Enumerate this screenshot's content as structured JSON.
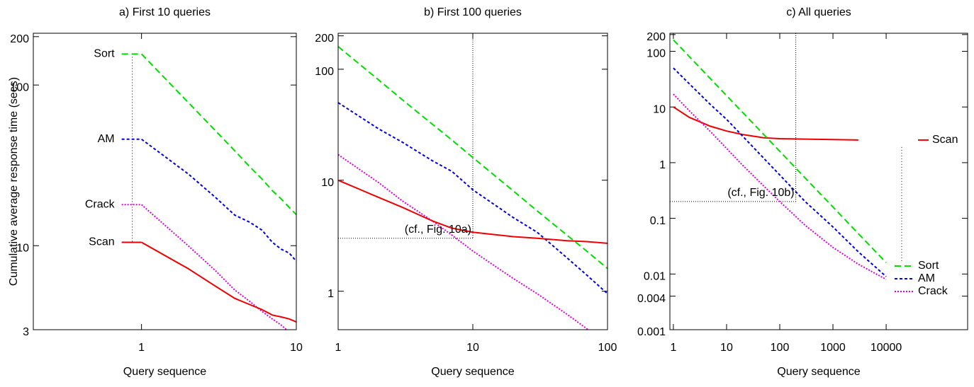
{
  "chart_data": [
    {
      "type": "line",
      "title": "a) First 10 queries",
      "x_label": "Query sequence",
      "y_label": "Cumulative average response time (secs)",
      "log_x": true,
      "log_y": true,
      "xlim": [
        0.2,
        10
      ],
      "ylim": [
        3,
        210
      ],
      "xticks": [
        1,
        10
      ],
      "yticks": [
        3,
        10,
        100,
        200
      ],
      "legend": "start",
      "x": [
        1,
        2,
        3,
        4,
        5,
        6,
        7,
        8,
        9,
        10
      ],
      "series": [
        {
          "name": "Sort",
          "color": "#00dd00",
          "dash": "dashed",
          "values": [
            156,
            78,
            52,
            39,
            31,
            26,
            22,
            19.5,
            17.3,
            15.6
          ]
        },
        {
          "name": "AM",
          "color": "#0000dd",
          "dash": "dotted",
          "values": [
            46,
            28,
            20,
            15.5,
            14,
            12.5,
            10.5,
            9.5,
            9,
            8
          ]
        },
        {
          "name": "Crack",
          "color": "#dd00dd",
          "dash": "fine",
          "values": [
            18,
            10,
            7,
            5.3,
            4.5,
            3.9,
            3.5,
            3.2,
            2.9,
            2.7
          ]
        },
        {
          "name": "Scan",
          "color": "#ee0000",
          "dash": "solid",
          "values": [
            10.5,
            7.2,
            5.6,
            4.7,
            4.3,
            4.0,
            3.7,
            3.6,
            3.5,
            3.35
          ]
        }
      ]
    },
    {
      "type": "line",
      "title": "b) First 100 queries",
      "x_label": "Query sequence",
      "log_x": true,
      "log_y": true,
      "xlim": [
        1,
        100
      ],
      "ylim": [
        0.45,
        211
      ],
      "xticks": [
        1,
        10,
        100
      ],
      "yticks": [
        1,
        10,
        100,
        200
      ],
      "legend": "none",
      "annotation": "(cf., Fig. 10a)",
      "reference": {
        "x": 10,
        "y": 3
      },
      "x": [
        1,
        2,
        3,
        5,
        7,
        10,
        20,
        30,
        50,
        70,
        100
      ],
      "series": [
        {
          "name": "Sort",
          "color": "#00dd00",
          "dash": "dashed",
          "values": [
            160,
            80,
            53,
            32,
            23,
            16,
            8,
            5.3,
            3.2,
            2.3,
            1.6
          ]
        },
        {
          "name": "AM",
          "color": "#0000dd",
          "dash": "dotted",
          "values": [
            50,
            29,
            22,
            15,
            12,
            8.2,
            4.6,
            3.4,
            2.0,
            1.4,
            0.95
          ]
        },
        {
          "name": "Crack",
          "color": "#dd00dd",
          "dash": "fine",
          "values": [
            17,
            9.5,
            6.5,
            4.3,
            3.2,
            2.3,
            1.3,
            0.95,
            0.62,
            0.46,
            0.33
          ]
        },
        {
          "name": "Scan",
          "color": "#ee0000",
          "dash": "solid",
          "values": [
            10,
            7,
            5.7,
            4.3,
            3.7,
            3.4,
            3.1,
            3.0,
            2.85,
            2.8,
            2.7
          ]
        }
      ]
    },
    {
      "type": "line",
      "title": "c) All queries",
      "x_label": "Query sequence",
      "log_x": true,
      "log_y": true,
      "xlim": [
        0.86,
        340000
      ],
      "ylim": [
        0.001,
        211
      ],
      "xticks": [
        1,
        10,
        100,
        1000,
        10000
      ],
      "yticks": [
        0.001,
        0.004,
        0.01,
        0.1,
        1,
        10,
        100,
        200
      ],
      "legend": "end",
      "annotation": "(cf., Fig. 10b)",
      "reference": {
        "x": 200,
        "y": 0.2
      },
      "x": [
        1,
        2,
        5,
        10,
        20,
        50,
        100,
        300,
        1000,
        3000,
        10000
      ],
      "series": [
        {
          "name": "Scan",
          "color": "#ee0000",
          "dash": "solid",
          "values": [
            10,
            6.5,
            4.5,
            3.7,
            3.2,
            2.8,
            2.7,
            2.65,
            2.6,
            2.55,
            null
          ]
        },
        {
          "name": "Sort",
          "color": "#00dd00",
          "dash": "dashed",
          "values": [
            160,
            80,
            32,
            16,
            8,
            3.2,
            1.6,
            0.53,
            0.16,
            0.053,
            0.016
          ]
        },
        {
          "name": "AM",
          "color": "#0000dd",
          "dash": "dotted",
          "values": [
            50,
            26,
            11,
            6,
            3,
            1.2,
            0.6,
            0.2,
            0.07,
            0.025,
            0.009
          ]
        },
        {
          "name": "Crack",
          "color": "#dd00dd",
          "dash": "fine",
          "values": [
            17,
            8.5,
            3.6,
            1.8,
            0.9,
            0.38,
            0.2,
            0.075,
            0.03,
            0.015,
            0.008
          ]
        }
      ]
    }
  ]
}
